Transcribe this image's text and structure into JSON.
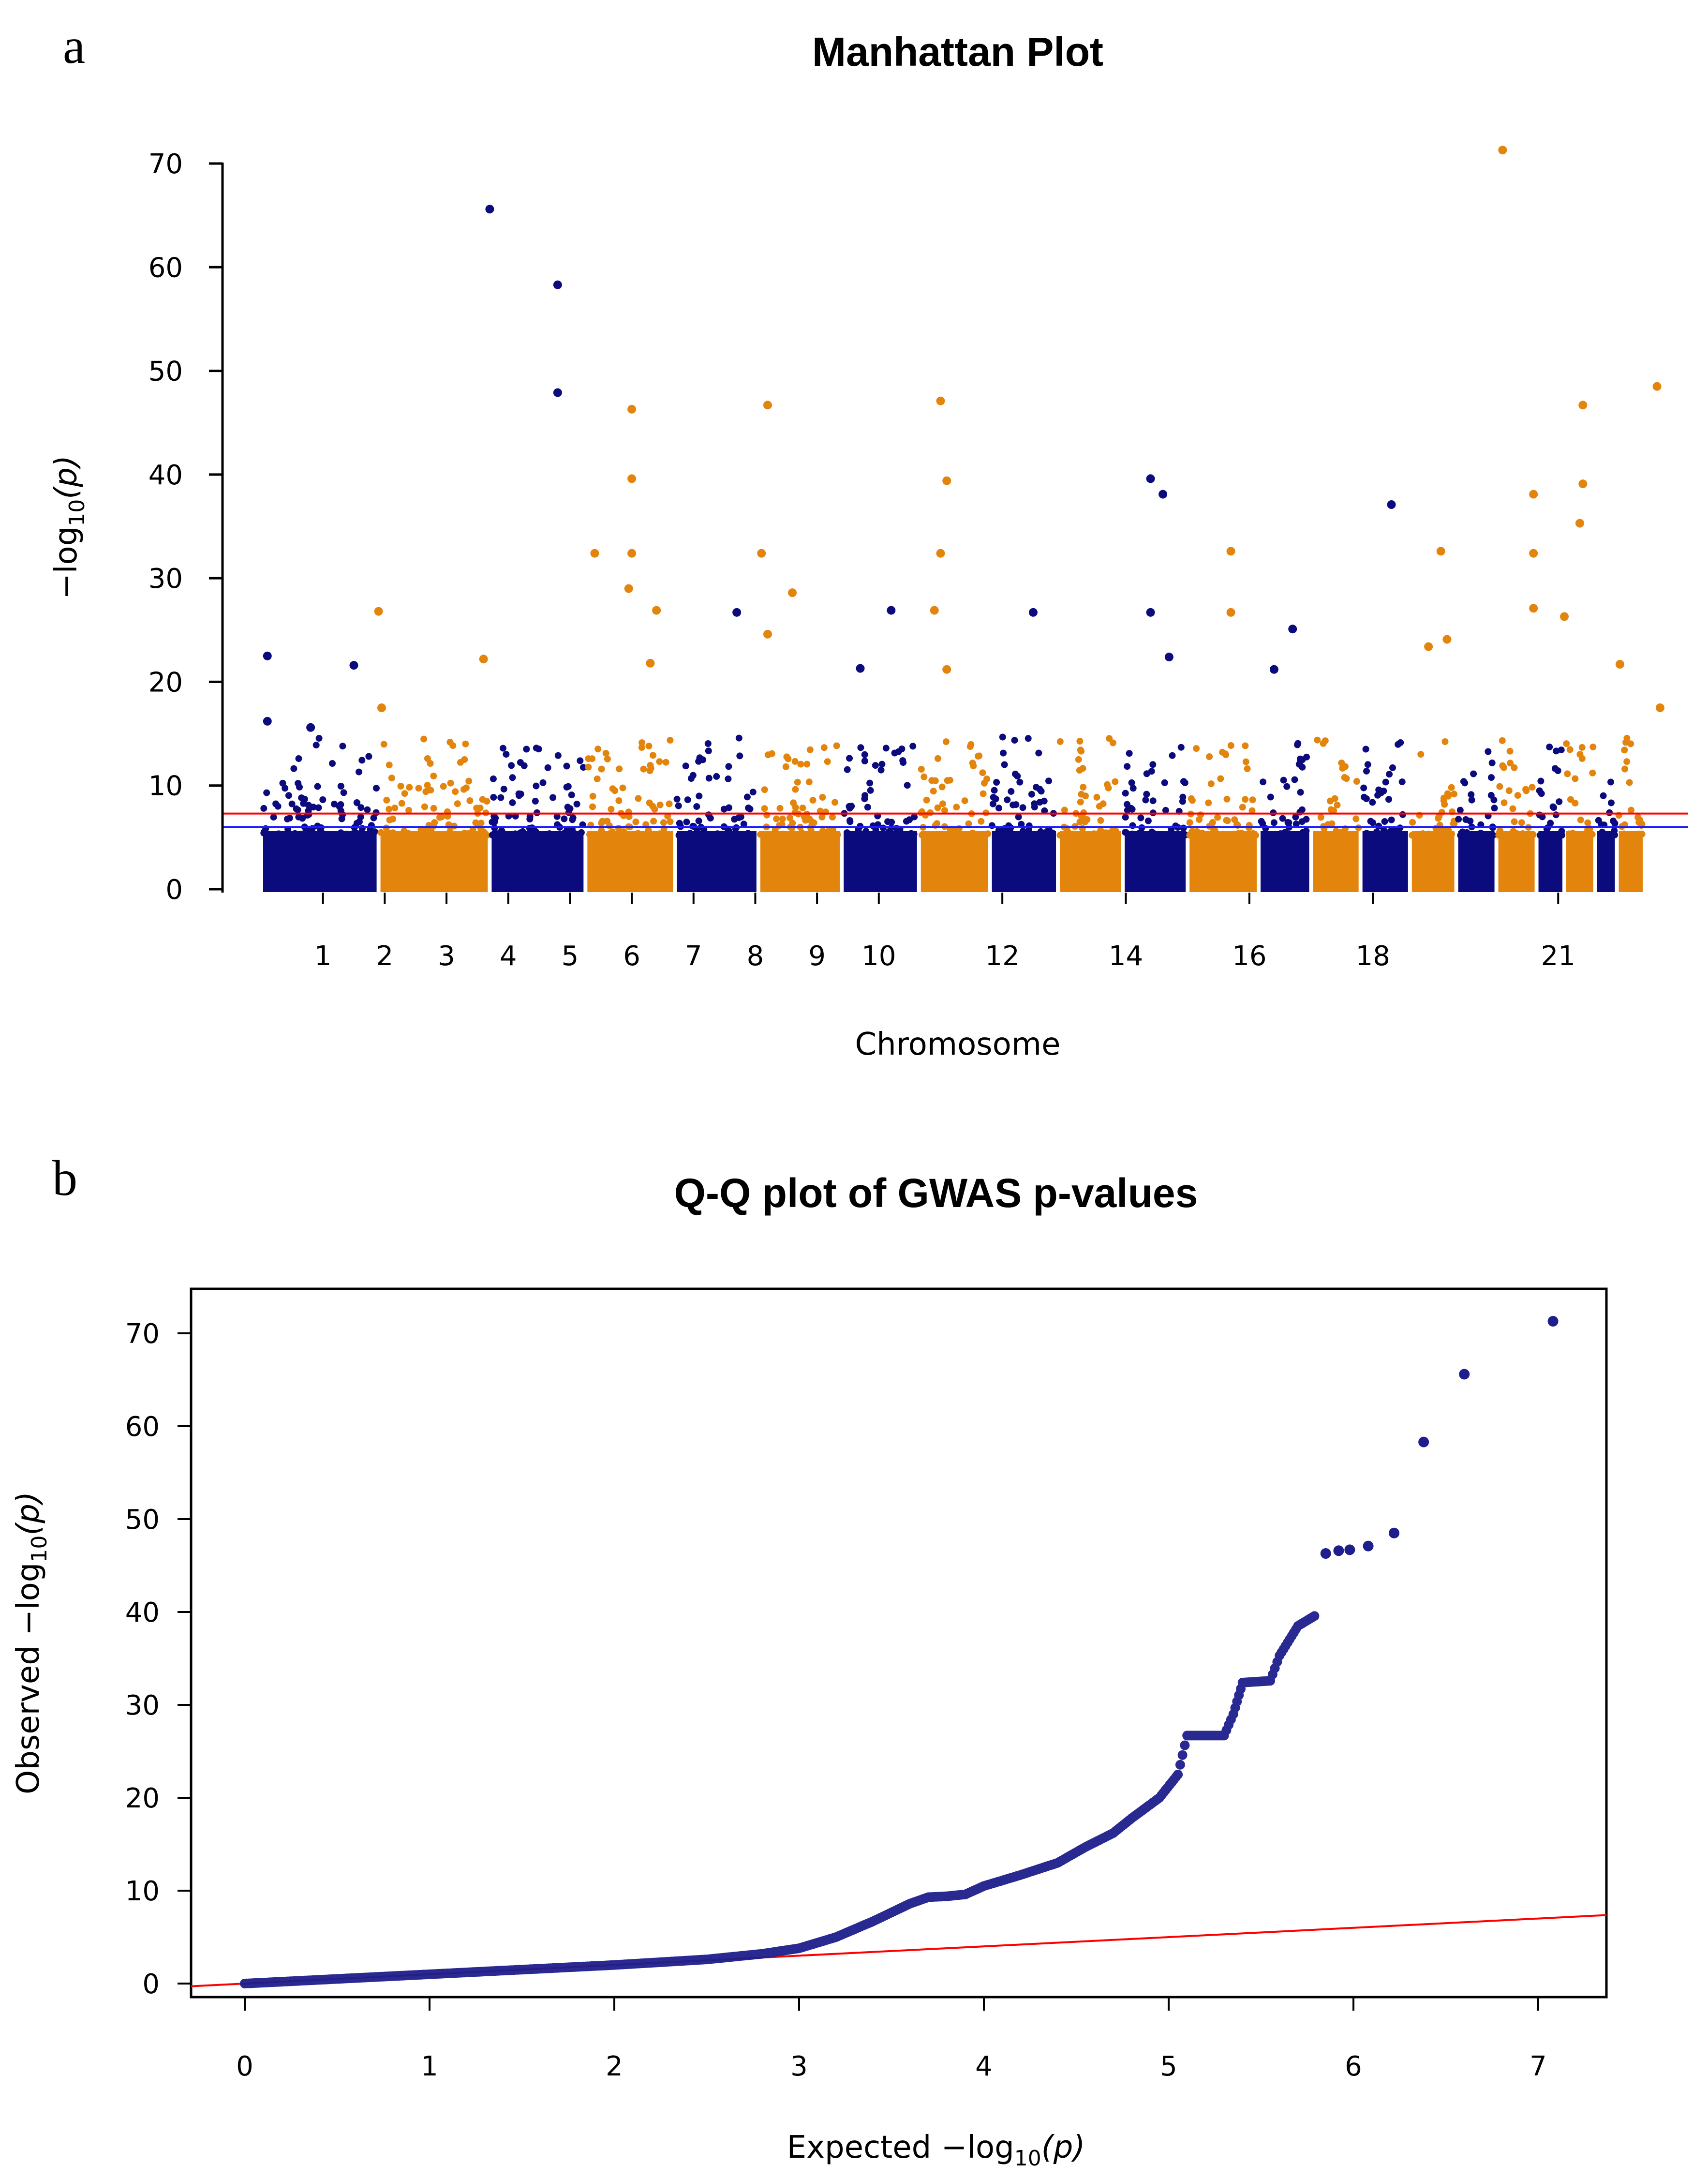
{
  "colors": {
    "navy": "#0b0b7e",
    "orange": "#e3850c",
    "red_line": "#ff0000",
    "blue_line": "#1c1cff",
    "qq_point": "#1e1e8c"
  },
  "chart_data": [
    {
      "panel": "a",
      "type": "scatter",
      "title": "Manhattan Plot",
      "xlabel": "Chromosome",
      "ylabel_prefix": "−log",
      "ylabel_sub": "10",
      "ylabel_var": "p",
      "ylim": [
        0,
        72
      ],
      "yticks": [
        0,
        10,
        20,
        30,
        40,
        50,
        60,
        70
      ],
      "xlim": [
        0,
        22.4
      ],
      "grid": false,
      "suggestive_line": 6,
      "genomewide_line": 7.3,
      "chromosome_tick_labels": [
        {
          "label": "1",
          "pos": 1
        },
        {
          "label": "2",
          "pos": 2
        },
        {
          "label": "3",
          "pos": 3
        },
        {
          "label": "4",
          "pos": 4
        },
        {
          "label": "5",
          "pos": 5
        },
        {
          "label": "6",
          "pos": 6
        },
        {
          "label": "7",
          "pos": 7
        },
        {
          "label": "8",
          "pos": 8
        },
        {
          "label": "9",
          "pos": 9
        },
        {
          "label": "10",
          "pos": 10
        },
        {
          "label": "12",
          "pos": 12
        },
        {
          "label": "14",
          "pos": 14
        },
        {
          "label": "16",
          "pos": 16
        },
        {
          "label": "18",
          "pos": 18
        },
        {
          "label": "21",
          "pos": 21
        }
      ],
      "chromosomes": [
        {
          "chr": 1,
          "start": 0.0,
          "end": 1.9,
          "color": "navy"
        },
        {
          "chr": 2,
          "start": 1.9,
          "end": 3.7,
          "color": "orange"
        },
        {
          "chr": 3,
          "start": 3.7,
          "end": 5.25,
          "color": "navy"
        },
        {
          "chr": 4,
          "start": 5.25,
          "end": 6.7,
          "color": "orange"
        },
        {
          "chr": 5,
          "start": 6.7,
          "end": 8.05,
          "color": "navy"
        },
        {
          "chr": 6,
          "start": 8.05,
          "end": 9.4,
          "color": "orange"
        },
        {
          "chr": 7,
          "start": 9.4,
          "end": 10.65,
          "color": "navy"
        },
        {
          "chr": 8,
          "start": 10.65,
          "end": 11.8,
          "color": "orange"
        },
        {
          "chr": 9,
          "start": 11.8,
          "end": 12.9,
          "color": "navy"
        },
        {
          "chr": 10,
          "start": 12.9,
          "end": 13.95,
          "color": "orange"
        },
        {
          "chr": 11,
          "start": 13.95,
          "end": 15.0,
          "color": "navy"
        },
        {
          "chr": 12,
          "start": 15.0,
          "end": 16.15,
          "color": "orange"
        },
        {
          "chr": 13,
          "start": 16.15,
          "end": 17.0,
          "color": "navy"
        },
        {
          "chr": 14,
          "start": 17.0,
          "end": 17.8,
          "color": "orange"
        },
        {
          "chr": 15,
          "start": 17.8,
          "end": 18.6,
          "color": "navy"
        },
        {
          "chr": 16,
          "start": 18.6,
          "end": 19.35,
          "color": "orange"
        },
        {
          "chr": 17,
          "start": 19.35,
          "end": 20.0,
          "color": "navy"
        },
        {
          "chr": 18,
          "start": 20.0,
          "end": 20.65,
          "color": "orange"
        },
        {
          "chr": 19,
          "start": 20.65,
          "end": 21.1,
          "color": "navy"
        },
        {
          "chr": 20,
          "start": 21.1,
          "end": 21.6,
          "color": "orange"
        },
        {
          "chr": 21,
          "start": 21.6,
          "end": 21.95,
          "color": "navy"
        },
        {
          "chr": 22,
          "start": 21.95,
          "end": 22.4,
          "color": "orange"
        }
      ],
      "top_hits": [
        {
          "x": 0.1,
          "y": 22.5
        },
        {
          "x": 0.1,
          "y": 16.2
        },
        {
          "x": 0.8,
          "y": 15.6
        },
        {
          "x": 1.5,
          "y": 21.6
        },
        {
          "x": 1.9,
          "y": 26.8
        },
        {
          "x": 1.95,
          "y": 17.5
        },
        {
          "x": 3.6,
          "y": 22.2
        },
        {
          "x": 3.7,
          "y": 65.6
        },
        {
          "x": 4.8,
          "y": 58.3
        },
        {
          "x": 4.8,
          "y": 47.9
        },
        {
          "x": 5.4,
          "y": 32.4
        },
        {
          "x": 6.0,
          "y": 46.3
        },
        {
          "x": 6.0,
          "y": 39.6
        },
        {
          "x": 6.0,
          "y": 32.4
        },
        {
          "x": 5.95,
          "y": 29.0
        },
        {
          "x": 6.4,
          "y": 26.9
        },
        {
          "x": 6.3,
          "y": 21.8
        },
        {
          "x": 7.7,
          "y": 26.7
        },
        {
          "x": 8.2,
          "y": 46.7
        },
        {
          "x": 8.1,
          "y": 32.4
        },
        {
          "x": 8.6,
          "y": 28.6
        },
        {
          "x": 8.2,
          "y": 24.6
        },
        {
          "x": 9.7,
          "y": 21.3
        },
        {
          "x": 10.2,
          "y": 26.9
        },
        {
          "x": 11.0,
          "y": 47.1
        },
        {
          "x": 11.1,
          "y": 39.4
        },
        {
          "x": 11.0,
          "y": 32.4
        },
        {
          "x": 10.9,
          "y": 26.9
        },
        {
          "x": 11.1,
          "y": 21.2
        },
        {
          "x": 12.5,
          "y": 26.7
        },
        {
          "x": 14.4,
          "y": 39.6
        },
        {
          "x": 14.6,
          "y": 38.1
        },
        {
          "x": 14.4,
          "y": 26.7
        },
        {
          "x": 14.7,
          "y": 22.4
        },
        {
          "x": 15.7,
          "y": 32.6
        },
        {
          "x": 15.7,
          "y": 26.7
        },
        {
          "x": 16.7,
          "y": 25.1
        },
        {
          "x": 16.4,
          "y": 21.2
        },
        {
          "x": 18.3,
          "y": 37.1
        },
        {
          "x": 19.1,
          "y": 32.6
        },
        {
          "x": 19.2,
          "y": 24.1
        },
        {
          "x": 18.9,
          "y": 23.4
        },
        {
          "x": 20.1,
          "y": 71.3
        },
        {
          "x": 20.6,
          "y": 38.1
        },
        {
          "x": 20.6,
          "y": 32.4
        },
        {
          "x": 20.6,
          "y": 27.1
        },
        {
          "x": 21.4,
          "y": 46.7
        },
        {
          "x": 21.4,
          "y": 39.1
        },
        {
          "x": 21.35,
          "y": 35.3
        },
        {
          "x": 21.1,
          "y": 26.3
        },
        {
          "x": 22.0,
          "y": 21.7
        },
        {
          "x": 22.6,
          "y": 48.5
        },
        {
          "x": 22.65,
          "y": 17.5
        }
      ]
    },
    {
      "panel": "b",
      "type": "scatter",
      "title": "Q-Q plot of GWAS p-values",
      "xlabel_prefix": "Expected  −log",
      "xlabel_sub": "10",
      "xlabel_var": "p",
      "ylabel_prefix": "Observed  −log",
      "ylabel_sub": "10",
      "ylabel_var": "p",
      "xlim": [
        -0.3,
        7.35
      ],
      "ylim": [
        -2.4,
        73.5
      ],
      "xticks": [
        0,
        1,
        2,
        3,
        4,
        5,
        6,
        7
      ],
      "yticks": [
        0,
        10,
        20,
        30,
        40,
        50,
        60,
        70
      ],
      "reference_line": {
        "slope": 1,
        "intercept": 0
      },
      "grid": false,
      "curve_points": [
        [
          0,
          0
        ],
        [
          0.5,
          0.5
        ],
        [
          1.0,
          1.0
        ],
        [
          1.5,
          1.5
        ],
        [
          2.0,
          2.0
        ],
        [
          2.5,
          2.6
        ],
        [
          2.8,
          3.2
        ],
        [
          3.0,
          3.8
        ],
        [
          3.2,
          5.0
        ],
        [
          3.4,
          6.7
        ],
        [
          3.6,
          8.6
        ],
        [
          3.7,
          9.3
        ],
        [
          3.8,
          9.4
        ],
        [
          3.9,
          9.6
        ],
        [
          4.0,
          10.5
        ],
        [
          4.2,
          11.7
        ],
        [
          4.4,
          13.0
        ],
        [
          4.55,
          14.7
        ],
        [
          4.7,
          16.2
        ],
        [
          4.8,
          17.8
        ],
        [
          4.95,
          20.0
        ],
        [
          5.05,
          22.5
        ],
        [
          5.1,
          26.7
        ],
        [
          5.3,
          26.7
        ],
        [
          5.35,
          29.0
        ],
        [
          5.4,
          32.4
        ],
        [
          5.55,
          32.6
        ],
        [
          5.6,
          35.3
        ],
        [
          5.7,
          38.5
        ],
        [
          5.8,
          39.7
        ]
      ],
      "tail_points": [
        [
          5.85,
          46.3
        ],
        [
          5.92,
          46.6
        ],
        [
          5.98,
          46.7
        ],
        [
          6.08,
          47.1
        ],
        [
          6.22,
          48.5
        ],
        [
          6.38,
          58.3
        ],
        [
          6.6,
          65.6
        ],
        [
          7.08,
          71.3
        ]
      ]
    }
  ]
}
